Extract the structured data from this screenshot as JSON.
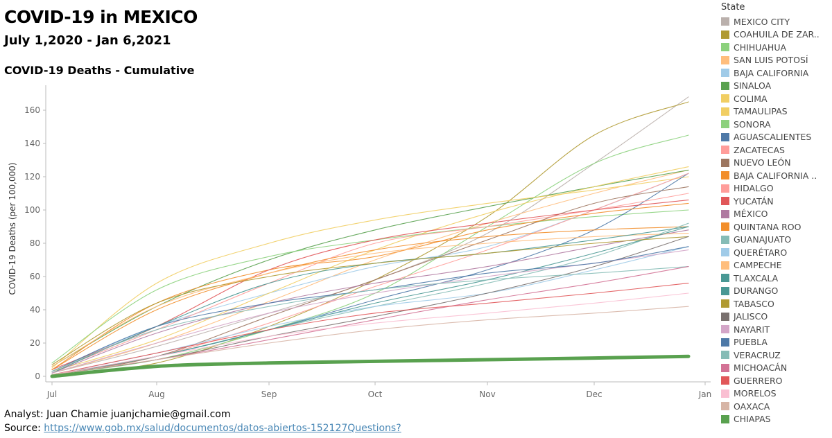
{
  "header": {
    "title": "COVID-19 in MEXICO",
    "subtitle": "July 1,2020 - Jan 6,2021",
    "chart_title": "COVID-19 Deaths - Cumulative"
  },
  "footer": {
    "analyst": "Analyst: Juan Chamie  juanjchamie@gmail.com",
    "source_prefix": "Source: ",
    "source_url": "https://www.gob.mx/salud/documentos/datos-abiertos-152127",
    "questions": "Questions?"
  },
  "legend": {
    "title": "State"
  },
  "chart_data": {
    "type": "line",
    "title": "COVID-19 Deaths - Cumulative",
    "xlabel": "",
    "ylabel": "COVID-19 Deaths (per 100,000)",
    "x_ticks": [
      "Jul",
      "Aug",
      "Sep",
      "Oct",
      "Nov",
      "Dec",
      "Jan"
    ],
    "y_ticks": [
      0,
      20,
      40,
      60,
      80,
      100,
      120,
      140,
      160
    ],
    "ylim": [
      0,
      175
    ],
    "legend_placement": "right",
    "series": [
      {
        "name": "MEXICO CITY",
        "color": "#bab0ac",
        "values": [
          2,
          18,
          38,
          58,
          86,
          128,
          168
        ]
      },
      {
        "name": "COAHUILA DE ZAR..",
        "color": "#b09a32",
        "values": [
          1,
          8,
          30,
          58,
          96,
          145,
          165
        ]
      },
      {
        "name": "CHIHUAHUA",
        "color": "#8cd17d",
        "values": [
          1,
          10,
          28,
          50,
          90,
          128,
          145
        ]
      },
      {
        "name": "SAN LUIS POTOSÍ",
        "color": "#ffbe7d",
        "values": [
          2,
          20,
          45,
          70,
          92,
          110,
          124
        ]
      },
      {
        "name": "BAJA CALIFORNIA",
        "color": "#a0cbe8",
        "values": [
          3,
          30,
          50,
          66,
          78,
          100,
          122
        ]
      },
      {
        "name": "SINALOA",
        "color": "#59a14f",
        "values": [
          6,
          42,
          70,
          88,
          102,
          114,
          124
        ]
      },
      {
        "name": "COLIMA",
        "color": "#f1ce63",
        "values": [
          3,
          22,
          50,
          76,
          98,
          114,
          126
        ]
      },
      {
        "name": "TAMAULIPAS",
        "color": "#f1ce63",
        "values": [
          5,
          56,
          80,
          94,
          104,
          112,
          120
        ]
      },
      {
        "name": "SONORA",
        "color": "#8cd17d",
        "values": [
          8,
          52,
          72,
          82,
          90,
          96,
          100
        ]
      },
      {
        "name": "AGUASCALIENTES",
        "color": "#4e79a7",
        "values": [
          1,
          12,
          28,
          46,
          64,
          88,
          122
        ]
      },
      {
        "name": "ZACATECAS",
        "color": "#ff9d9a",
        "values": [
          1,
          12,
          32,
          54,
          76,
          100,
          122
        ]
      },
      {
        "name": "NUEVO LEÓN",
        "color": "#9d7660",
        "values": [
          1,
          12,
          36,
          58,
          82,
          104,
          114
        ]
      },
      {
        "name": "BAJA CALIFORNIA ..",
        "color": "#f28e2b",
        "values": [
          4,
          44,
          64,
          72,
          88,
          98,
          104
        ]
      },
      {
        "name": "HIDALGO",
        "color": "#ff9d9a",
        "values": [
          3,
          28,
          56,
          80,
          90,
          100,
          110
        ]
      },
      {
        "name": "YUCATÁN",
        "color": "#e15759",
        "values": [
          4,
          30,
          64,
          82,
          92,
          100,
          106
        ]
      },
      {
        "name": "MÉXICO",
        "color": "#b07aa1",
        "values": [
          2,
          26,
          44,
          56,
          66,
          78,
          88
        ]
      },
      {
        "name": "QUINTANA ROO",
        "color": "#f28e2b",
        "values": [
          4,
          40,
          62,
          76,
          84,
          88,
          90
        ]
      },
      {
        "name": "GUANAJUATO",
        "color": "#86bcb6",
        "values": [
          1,
          12,
          28,
          42,
          56,
          72,
          92
        ]
      },
      {
        "name": "QUERÉTARO",
        "color": "#a0cbe8",
        "values": [
          1,
          14,
          30,
          42,
          50,
          64,
          78
        ]
      },
      {
        "name": "CAMPECHE",
        "color": "#ffbe7d",
        "values": [
          6,
          42,
          62,
          74,
          80,
          84,
          86
        ]
      },
      {
        "name": "TLAXCALA",
        "color": "#499894",
        "values": [
          2,
          30,
          56,
          68,
          74,
          82,
          90
        ]
      },
      {
        "name": "DURANGO",
        "color": "#499894",
        "values": [
          1,
          12,
          28,
          44,
          58,
          74,
          90
        ]
      },
      {
        "name": "TABASCO",
        "color": "#b09a32",
        "values": [
          7,
          44,
          60,
          68,
          74,
          80,
          84
        ]
      },
      {
        "name": "JALISCO",
        "color": "#79706e",
        "values": [
          1,
          10,
          24,
          36,
          50,
          66,
          84
        ]
      },
      {
        "name": "NAYARIT",
        "color": "#d4a6c8",
        "values": [
          2,
          20,
          38,
          50,
          60,
          68,
          76
        ]
      },
      {
        "name": "PUEBLA",
        "color": "#4e79a7",
        "values": [
          3,
          30,
          44,
          52,
          62,
          68,
          78
        ]
      },
      {
        "name": "VERACRUZ",
        "color": "#86bcb6",
        "values": [
          3,
          28,
          42,
          52,
          58,
          62,
          66
        ]
      },
      {
        "name": "MICHOACÁN",
        "color": "#d37295",
        "values": [
          1,
          10,
          22,
          34,
          46,
          56,
          66
        ]
      },
      {
        "name": "GUERRERO",
        "color": "#e15759",
        "values": [
          1,
          14,
          28,
          38,
          44,
          50,
          56
        ]
      },
      {
        "name": "MORELOS",
        "color": "#fabfd2",
        "values": [
          1,
          12,
          24,
          32,
          38,
          44,
          50
        ]
      },
      {
        "name": "OAXACA",
        "color": "#d7b5a6",
        "values": [
          1,
          10,
          20,
          28,
          34,
          38,
          42
        ]
      },
      {
        "name": "CHIAPAS",
        "color": "#59a14f",
        "values": [
          0,
          6,
          8,
          9,
          10,
          11,
          12
        ]
      }
    ]
  }
}
